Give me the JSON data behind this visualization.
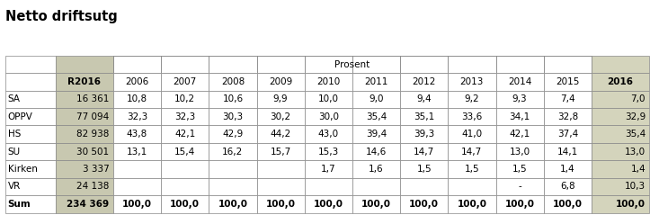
{
  "title": "Netto driftsutg",
  "title_fontsize": 10.5,
  "col_header_row2": [
    "",
    "R2016",
    "2006",
    "2007",
    "2008",
    "2009",
    "2010",
    "2011",
    "2012",
    "2013",
    "2014",
    "2015",
    "2016"
  ],
  "rows": [
    [
      "SA",
      "16 361",
      "10,8",
      "10,2",
      "10,6",
      "9,9",
      "10,0",
      "9,0",
      "9,4",
      "9,2",
      "9,3",
      "7,4",
      "7,0"
    ],
    [
      "OPPV",
      "77 094",
      "32,3",
      "32,3",
      "30,3",
      "30,2",
      "30,0",
      "35,4",
      "35,1",
      "33,6",
      "34,1",
      "32,8",
      "32,9"
    ],
    [
      "HS",
      "82 938",
      "43,8",
      "42,1",
      "42,9",
      "44,2",
      "43,0",
      "39,4",
      "39,3",
      "41,0",
      "42,1",
      "37,4",
      "35,4"
    ],
    [
      "SU",
      "30 501",
      "13,1",
      "15,4",
      "16,2",
      "15,7",
      "15,3",
      "14,6",
      "14,7",
      "14,7",
      "13,0",
      "14,1",
      "13,0"
    ],
    [
      "Kirken",
      "3 337",
      "",
      "",
      "",
      "",
      "1,7",
      "1,6",
      "1,5",
      "1,5",
      "1,5",
      "1,4",
      "1,4"
    ],
    [
      "VR",
      "24 138",
      "",
      "",
      "",
      "",
      "",
      "",
      "",
      "",
      "-",
      "6,8",
      "10,3"
    ],
    [
      "Sum",
      "234 369",
      "100,0",
      "100,0",
      "100,0",
      "100,0",
      "100,0",
      "100,0",
      "100,0",
      "100,0",
      "100,0",
      "100,0",
      "100,0"
    ]
  ],
  "bg_gray": "#c8c8b0",
  "bg_white": "#ffffff",
  "bg_last_col": "#d4d4bc",
  "border_color": "#888888",
  "text_color": "#000000",
  "font_size": 7.5,
  "fig_width": 7.23,
  "fig_height": 2.39,
  "dpi": 100
}
